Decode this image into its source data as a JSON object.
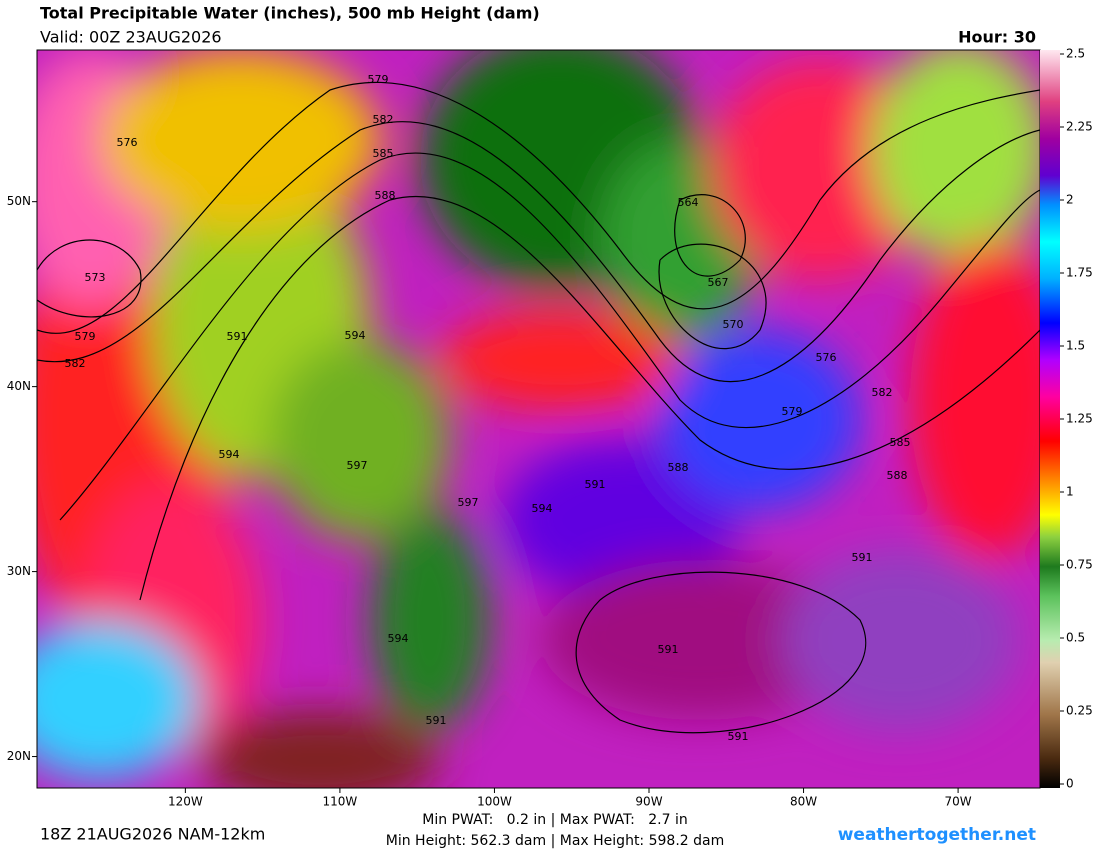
{
  "header": {
    "title": "Total Precipitable Water (inches), 500 mb Height (dam)",
    "valid": "Valid: 00Z 23AUG2026",
    "hour": "Hour: 30"
  },
  "map": {
    "lon_lim": [
      -129.6,
      -64.7
    ],
    "lat_lim": [
      18.3,
      58.2
    ],
    "lon_ticks": [
      {
        "value": -120,
        "label": "120W"
      },
      {
        "value": -110,
        "label": "110W"
      },
      {
        "value": -100,
        "label": "100W"
      },
      {
        "value": -90,
        "label": "90W"
      },
      {
        "value": -80,
        "label": "80W"
      },
      {
        "value": -70,
        "label": "70W"
      }
    ],
    "lat_ticks": [
      {
        "value": 50,
        "label": "50N"
      },
      {
        "value": 40,
        "label": "40N"
      },
      {
        "value": 30,
        "label": "30N"
      },
      {
        "value": 20,
        "label": "20N"
      }
    ],
    "contour_labels": [
      579,
      582,
      585,
      588,
      576,
      573,
      579,
      582,
      591,
      594,
      594,
      597,
      597,
      594,
      591,
      588,
      564,
      567,
      570,
      576,
      579,
      582,
      585,
      588,
      591,
      591,
      594,
      591,
      591
    ]
  },
  "colorbar": {
    "lim": [
      0,
      2.5
    ],
    "ticks": [
      0,
      0.25,
      0.5,
      0.75,
      1,
      1.25,
      1.5,
      1.75,
      2,
      2.25,
      2.5
    ]
  },
  "footer": {
    "run": "18Z 21AUG2026 NAM-12km",
    "pwat": "Min PWAT:   0.2 in | Max PWAT:   2.7 in",
    "height": "Min Height: 562.3 dam | Max Height: 598.2 dam",
    "site": "weathertogether.net"
  }
}
